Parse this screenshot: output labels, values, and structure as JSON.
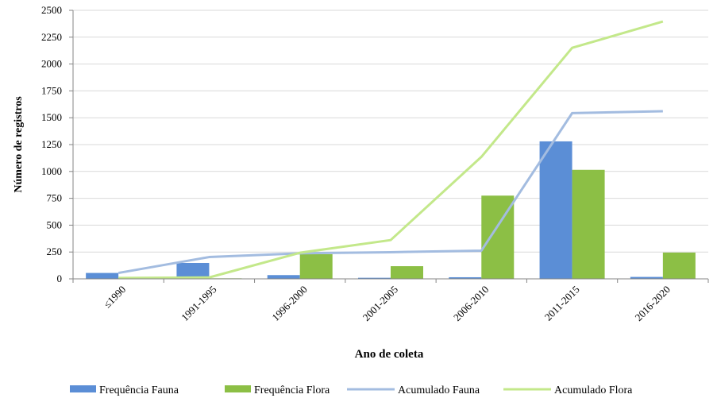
{
  "chart_data": {
    "type": "bar+line",
    "title": "",
    "xlabel": "Ano de coleta",
    "ylabel": "Número de registros",
    "ylim": [
      0,
      2500
    ],
    "yticks": [
      0,
      250,
      500,
      750,
      1000,
      1250,
      1500,
      1750,
      2000,
      2250,
      2500
    ],
    "grid": true,
    "categories": [
      "≤1990",
      "1991-1995",
      "1996-2000",
      "2001-2005",
      "2006-2010",
      "2011-2015",
      "2016-2020"
    ],
    "series": [
      {
        "name": "Frequência Fauna",
        "kind": "bar",
        "color": "#5B8ED6",
        "values": [
          55,
          148,
          35,
          10,
          15,
          1280,
          18
        ]
      },
      {
        "name": "Frequência Flora",
        "kind": "bar",
        "color": "#8CBF45",
        "values": [
          8,
          5,
          230,
          118,
          775,
          1015,
          245
        ]
      },
      {
        "name": "Acumulado Fauna",
        "kind": "line",
        "color": "#A3BCE0",
        "values": [
          55,
          203,
          238,
          248,
          263,
          1543,
          1561
        ]
      },
      {
        "name": "Acumulado Flora",
        "kind": "line",
        "color": "#C3E88A",
        "values": [
          8,
          13,
          243,
          361,
          1136,
          2151,
          2396
        ]
      }
    ],
    "legend": "bottom"
  }
}
